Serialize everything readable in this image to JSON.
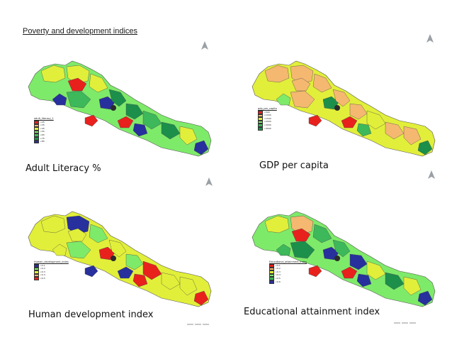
{
  "slide": {
    "title": "Poverty and development indices"
  },
  "colors": {
    "red": "#e8211d",
    "orange": "#f5b870",
    "yellow": "#e1ef3a",
    "light_green": "#7eea6a",
    "green": "#3db85a",
    "dark_green": "#1c8f4a",
    "blue": "#27309c",
    "north_arrow": "#9aa0a6"
  },
  "maps": [
    {
      "id": "adult-literacy",
      "caption": "Adult Literacy %",
      "legend_title": "adult_literacy_1",
      "legend_labels": [
        "<25",
        "<35",
        "<45",
        "<55",
        "<65",
        "<75",
        "<85"
      ],
      "legend_colors": [
        "#e8211d",
        "#f5b870",
        "#e1ef3a",
        "#7eea6a",
        "#3db85a",
        "#1c8f4a",
        "#27309c"
      ],
      "base_color": "#7eea6a",
      "regions": [
        {
          "color": "#e1ef3a"
        },
        {
          "color": "#e1ef3a"
        },
        {
          "color": "#e8211d"
        },
        {
          "color": "#e1ef3a"
        },
        {
          "color": "#27309c"
        },
        {
          "color": "#3db85a"
        },
        {
          "color": "#27309c"
        },
        {
          "color": "#1c8f4a"
        },
        {
          "color": "#e8211d"
        },
        {
          "color": "#e8211d"
        },
        {
          "color": "#1c8f4a"
        },
        {
          "color": "#3db85a"
        },
        {
          "color": "#1c8f4a"
        },
        {
          "color": "#27309c"
        },
        {
          "color": "#e1ef3a"
        },
        {
          "color": "#27309c"
        }
      ]
    },
    {
      "id": "gdp-per-capita",
      "caption": "GDP per capita",
      "legend_title": "gdp_per_capita",
      "legend_labels": [
        "<500",
        "<1000",
        "<1500",
        "<2000",
        "<3000",
        "<4000"
      ],
      "legend_colors": [
        "#e8211d",
        "#f5b870",
        "#e1ef3a",
        "#7eea6a",
        "#3db85a",
        "#1c8f4a"
      ],
      "base_color": "#e1ef3a",
      "regions": [
        {
          "color": "#f5b870"
        },
        {
          "color": "#f5b870"
        },
        {
          "color": "#f5b870"
        },
        {
          "color": "#f5b870"
        },
        {
          "color": "#7eea6a"
        },
        {
          "color": "#f5b870"
        },
        {
          "color": "#1c8f4a"
        },
        {
          "color": "#f5b870"
        },
        {
          "color": "#e8211d"
        },
        {
          "color": "#e8211d"
        },
        {
          "color": "#f5b870"
        },
        {
          "color": "#e1ef3a"
        },
        {
          "color": "#f5b870"
        },
        {
          "color": "#3db85a"
        },
        {
          "color": "#f5b870"
        },
        {
          "color": "#1c8f4a"
        }
      ]
    },
    {
      "id": "human-development-index",
      "caption": "Human development index",
      "legend_title": "Human_development_index",
      "legend_labels": [
        "<0.1",
        "<0.2",
        "<0.3",
        "<0.4",
        "<0.5"
      ],
      "legend_colors": [
        "#27309c",
        "#7eea6a",
        "#e1ef3a",
        "#f5b870",
        "#e8211d"
      ],
      "base_color": "#e1ef3a",
      "regions": [
        {
          "color": "#e1ef3a"
        },
        {
          "color": "#27309c"
        },
        {
          "color": "#e1ef3a"
        },
        {
          "color": "#7eea6a"
        },
        {
          "color": "#e1ef3a"
        },
        {
          "color": "#7eea6a"
        },
        {
          "color": "#e8211d"
        },
        {
          "color": "#e1ef3a"
        },
        {
          "color": "#27309c"
        },
        {
          "color": "#27309c"
        },
        {
          "color": "#7eea6a"
        },
        {
          "color": "#e8211d"
        },
        {
          "color": "#e1ef3a"
        },
        {
          "color": "#e8211d"
        },
        {
          "color": "#e1ef3a"
        },
        {
          "color": "#e8211d"
        }
      ]
    },
    {
      "id": "educational-attainment-index",
      "caption": "Educational attainment index",
      "legend_title": "Educational_attainment_index",
      "legend_labels": [
        "<0.1",
        "<0.2",
        "<0.3",
        "<0.4",
        "<0.5",
        "<0.6"
      ],
      "legend_colors": [
        "#e8211d",
        "#f5b870",
        "#e1ef3a",
        "#7eea6a",
        "#3db85a",
        "#27309c"
      ],
      "base_color": "#7eea6a",
      "regions": [
        {
          "color": "#e1ef3a"
        },
        {
          "color": "#f5b870"
        },
        {
          "color": "#e8211d"
        },
        {
          "color": "#3db85a"
        },
        {
          "color": "#3db85a"
        },
        {
          "color": "#1c8f4a"
        },
        {
          "color": "#27309c"
        },
        {
          "color": "#3db85a"
        },
        {
          "color": "#e8211d"
        },
        {
          "color": "#e8211d"
        },
        {
          "color": "#27309c"
        },
        {
          "color": "#e1ef3a"
        },
        {
          "color": "#1c8f4a"
        },
        {
          "color": "#27309c"
        },
        {
          "color": "#e1ef3a"
        },
        {
          "color": "#27309c"
        }
      ]
    }
  ]
}
